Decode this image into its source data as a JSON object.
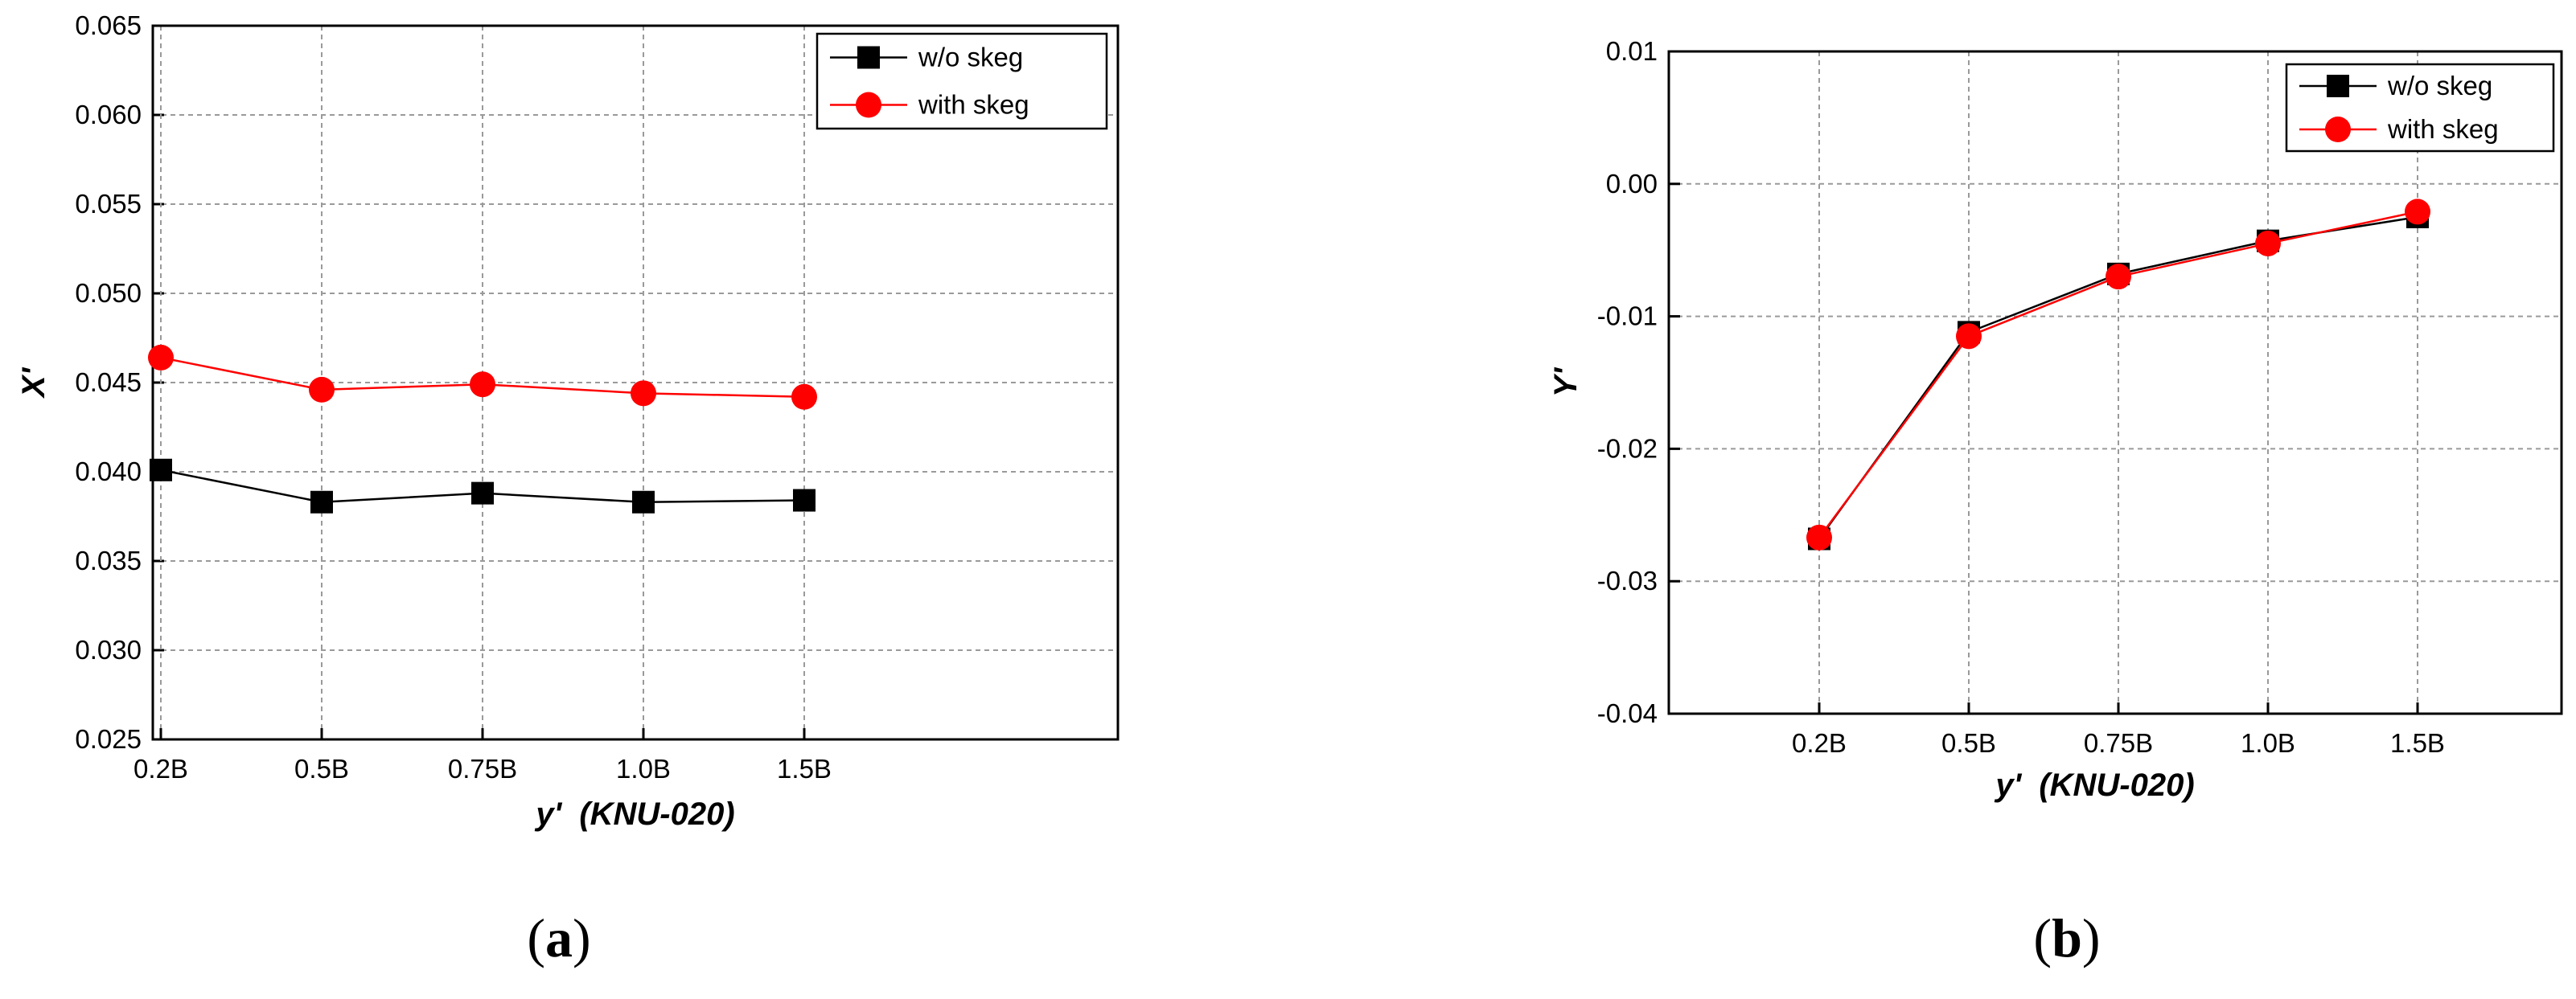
{
  "chart_data": [
    {
      "type": "line",
      "caption_letter": "a",
      "xlabel": "y'  (KNU-020)",
      "ylabel": "X'",
      "categories": [
        "0.2B",
        "0.5B",
        "0.75B",
        "1.0B",
        "1.5B"
      ],
      "ylim": [
        0.025,
        0.065
      ],
      "yticks": [
        "0.025",
        "0.030",
        "0.035",
        "0.040",
        "0.045",
        "0.050",
        "0.055",
        "0.060",
        "0.065"
      ],
      "grid": true,
      "legend_position": "top-right",
      "series": [
        {
          "name": "w/o skeg",
          "marker": "square",
          "color": "#000000",
          "values": [
            0.0401,
            0.0383,
            0.0388,
            0.0383,
            0.0384
          ]
        },
        {
          "name": "with skeg",
          "marker": "circle",
          "color": "#ff0000",
          "values": [
            0.0464,
            0.0446,
            0.0449,
            0.0444,
            0.0442
          ]
        }
      ]
    },
    {
      "type": "line",
      "caption_letter": "b",
      "xlabel": "y'  (KNU-020)",
      "ylabel": "Y'",
      "categories": [
        "0.2B",
        "0.5B",
        "0.75B",
        "1.0B",
        "1.5B"
      ],
      "ylim": [
        -0.04,
        0.01
      ],
      "yticks": [
        "-0.04",
        "-0.03",
        "-0.02",
        "-0.01",
        "0.00",
        "0.01"
      ],
      "grid": true,
      "legend_position": "top-right",
      "series": [
        {
          "name": "w/o skeg",
          "marker": "square",
          "color": "#000000",
          "values": [
            -0.0268,
            -0.0112,
            -0.0068,
            -0.0043,
            -0.0025
          ]
        },
        {
          "name": "with skeg",
          "marker": "circle",
          "color": "#ff0000",
          "values": [
            -0.0267,
            -0.0115,
            -0.007,
            -0.0045,
            -0.0021
          ]
        }
      ]
    }
  ]
}
